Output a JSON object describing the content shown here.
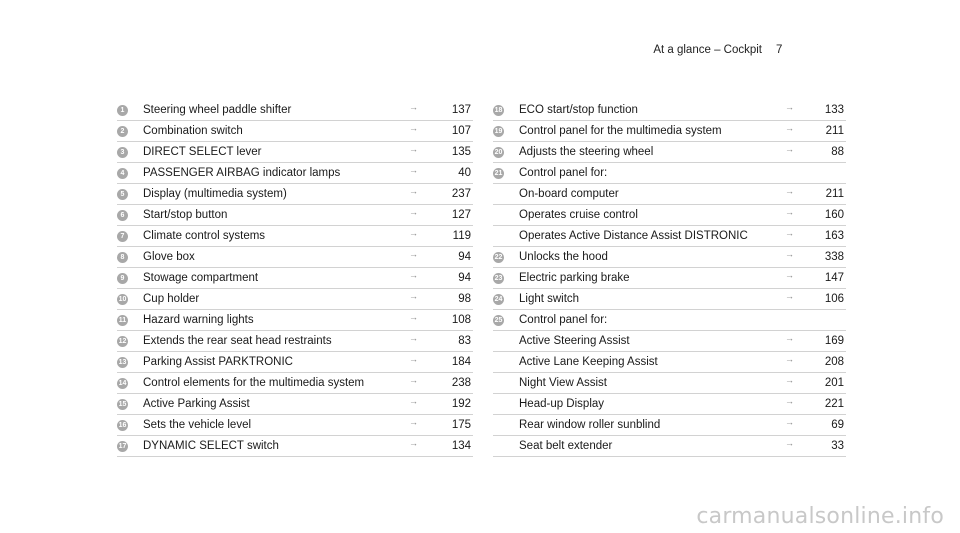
{
  "header": {
    "title": "At a glance – Cockpit",
    "page": "7"
  },
  "left_items": [
    {
      "num": "1",
      "label": "Steering wheel paddle shifter",
      "arrow": "→",
      "page": "137"
    },
    {
      "num": "2",
      "label": "Combination switch",
      "arrow": "→",
      "page": "107"
    },
    {
      "num": "3",
      "label": "DIRECT SELECT lever",
      "arrow": "→",
      "page": "135"
    },
    {
      "num": "4",
      "label": "PASSENGER AIRBAG indicator lamps",
      "arrow": "→",
      "page": "40"
    },
    {
      "num": "5",
      "label": "Display (multimedia system)",
      "arrow": "→",
      "page": "237"
    },
    {
      "num": "6",
      "label": "Start/stop button",
      "arrow": "→",
      "page": "127"
    },
    {
      "num": "7",
      "label": "Climate control systems",
      "arrow": "→",
      "page": "119"
    },
    {
      "num": "8",
      "label": "Glove box",
      "arrow": "→",
      "page": "94"
    },
    {
      "num": "9",
      "label": "Stowage compartment",
      "arrow": "→",
      "page": "94"
    },
    {
      "num": "10",
      "label": "Cup holder",
      "arrow": "→",
      "page": "98"
    },
    {
      "num": "11",
      "label": "Hazard warning lights",
      "arrow": "→",
      "page": "108"
    },
    {
      "num": "12",
      "label": "Extends the rear seat head restraints",
      "arrow": "→",
      "page": "83"
    },
    {
      "num": "13",
      "label": "Parking Assist PARKTRONIC",
      "arrow": "→",
      "page": "184"
    },
    {
      "num": "14",
      "label": "Control elements for the multimedia system",
      "arrow": "→",
      "page": "238"
    },
    {
      "num": "15",
      "label": "Active Parking Assist",
      "arrow": "→",
      "page": "192"
    },
    {
      "num": "16",
      "label": "Sets the vehicle level",
      "arrow": "→",
      "page": "175"
    },
    {
      "num": "17",
      "label": "DYNAMIC SELECT switch",
      "arrow": "→",
      "page": "134"
    }
  ],
  "right_items": [
    {
      "num": "18",
      "label": "ECO start/stop function",
      "arrow": "→",
      "page": "133"
    },
    {
      "num": "19",
      "label": "Control panel for the multimedia system",
      "arrow": "→",
      "page": "211"
    },
    {
      "num": "20",
      "label": "Adjusts the steering wheel",
      "arrow": "→",
      "page": "88"
    },
    {
      "num": "21",
      "label": "Control panel for:",
      "arrow": "",
      "page": ""
    },
    {
      "num": "",
      "label": "On-board computer",
      "arrow": "→",
      "page": "211"
    },
    {
      "num": "",
      "label": "Operates cruise control",
      "arrow": "→",
      "page": "160"
    },
    {
      "num": "",
      "label": "Operates Active Distance Assist DISTRONIC",
      "arrow": "→",
      "page": "163"
    },
    {
      "num": "22",
      "label": "Unlocks the hood",
      "arrow": "→",
      "page": "338"
    },
    {
      "num": "23",
      "label": "Electric parking brake",
      "arrow": "→",
      "page": "147"
    },
    {
      "num": "24",
      "label": "Light switch",
      "arrow": "→",
      "page": "106"
    },
    {
      "num": "25",
      "label": "Control panel for:",
      "arrow": "",
      "page": ""
    },
    {
      "num": "",
      "label": "Active Steering Assist",
      "arrow": "→",
      "page": "169"
    },
    {
      "num": "",
      "label": "Active Lane Keeping Assist",
      "arrow": "→",
      "page": "208"
    },
    {
      "num": "",
      "label": "Night View Assist",
      "arrow": "→",
      "page": "201"
    },
    {
      "num": "",
      "label": "Head-up Display",
      "arrow": "→",
      "page": "221"
    },
    {
      "num": "",
      "label": "Rear window roller sunblind",
      "arrow": "→",
      "page": "69"
    },
    {
      "num": "",
      "label": "Seat belt extender",
      "arrow": "→",
      "page": "33"
    }
  ],
  "watermark": "carmanualsonline.info"
}
